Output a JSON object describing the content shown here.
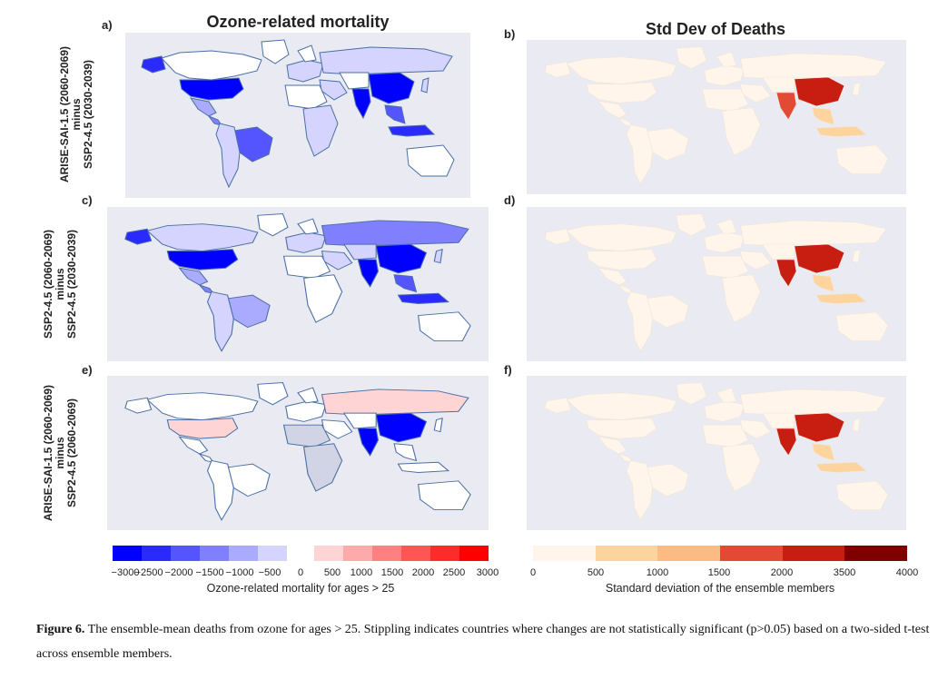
{
  "titles": {
    "left": "Ozone-related mortality",
    "right": "Std Dev of Deaths"
  },
  "panel_labels": [
    "a)",
    "b)",
    "c)",
    "d)",
    "e)",
    "f)"
  ],
  "row_labels": [
    [
      "ARISE-SAI-1.5 (2060-2069)",
      "minus",
      "SSP2-4.5 (2030-2039)"
    ],
    [
      "SSP2-4.5 (2060-2069)",
      "minus",
      "SSP2-4.5 (2030-2039)"
    ],
    [
      "ARISE-SAI-1.5 (2060-2069)",
      "minus",
      "SSP2-4.5 (2060-2069)"
    ]
  ],
  "colorbar_mortality": {
    "label": "Ozone-related mortality for ages > 25",
    "ticks": [
      "−3000",
      "−2500",
      "−2000",
      "−1500",
      "−1000",
      "−500",
      "0",
      "500",
      "1000",
      "1500",
      "2000",
      "2500",
      "3000"
    ],
    "colors_negative": [
      "#0000ff",
      "#2a2aff",
      "#5555ff",
      "#8080ff",
      "#aaaaff",
      "#d4d4ff"
    ],
    "colors_positive": [
      "#ffd4d4",
      "#ffaaaa",
      "#ff8080",
      "#ff5555",
      "#ff2a2a",
      "#ff0000"
    ]
  },
  "colorbar_std": {
    "label": "Standard deviation of the ensemble members",
    "ticks": [
      "0",
      "500",
      "1000",
      "1500",
      "2000",
      "3500",
      "4000"
    ],
    "colors": [
      "#fff5eb",
      "#fdd49e",
      "#fdbb84",
      "#e34a33",
      "#c81d11",
      "#7f0000"
    ]
  },
  "caption": {
    "label": "Figure 6.",
    "text": " The ensemble-mean deaths from ozone for ages > 25. Stippling indicates countries where changes are not statistically significant (p>0.05) based on a two-sided t-test across ensemble members."
  }
}
